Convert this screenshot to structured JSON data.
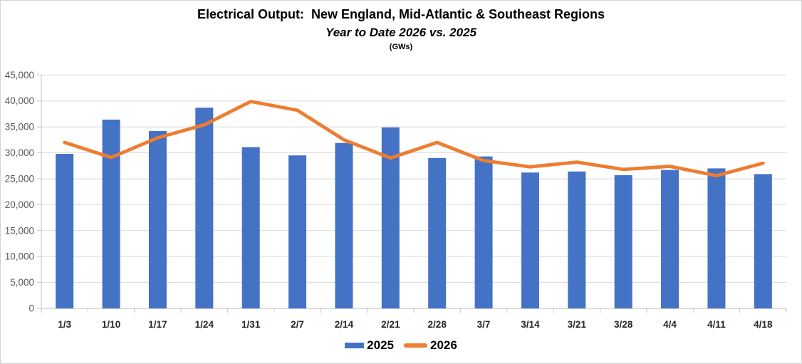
{
  "header": {
    "title": "Electrical Output:  New England, Mid-Atlantic & Southeast Regions",
    "subtitle": "Year to Date 2026 vs. 2025",
    "units_label": "(GWs)"
  },
  "legend": {
    "items": [
      {
        "label": "2025",
        "marker": "bar-swatch",
        "color": "#4472C4"
      },
      {
        "label": "2026",
        "marker": "line-swatch",
        "color": "#ED7D31"
      }
    ]
  },
  "colors": {
    "bar_2025": "#4472C4",
    "line_2026": "#ED7D31",
    "gridline": "#D9D9D9",
    "axis": "#C6C6C6",
    "y_tick_label": "#595959",
    "x_tick_label": "#262626",
    "title_text": "#000000"
  },
  "chart_data": {
    "type": "bar",
    "title": "Electrical Output:  New England, Mid-Atlantic & Southeast Regions",
    "subtitle": "Year to Date 2026 vs. 2025",
    "units": "(GWs)",
    "categories": [
      "1/3",
      "1/10",
      "1/17",
      "1/24",
      "1/31",
      "2/7",
      "2/14",
      "2/21",
      "2/28",
      "3/7",
      "3/14",
      "3/21",
      "3/28",
      "4/4",
      "4/11",
      "4/18"
    ],
    "series": [
      {
        "name": "2025",
        "type": "bar",
        "color": "#4472C4",
        "values": [
          29800,
          36400,
          34200,
          38700,
          31100,
          29500,
          31900,
          34900,
          29000,
          29300,
          26200,
          26400,
          25700,
          26700,
          27000,
          25900
        ]
      },
      {
        "name": "2026",
        "type": "line",
        "color": "#ED7D31",
        "values": [
          32000,
          29100,
          32900,
          35400,
          39900,
          38200,
          32500,
          29000,
          32000,
          28500,
          27300,
          28200,
          26800,
          27400,
          25600,
          28000
        ]
      }
    ],
    "ylim": [
      0,
      45000
    ],
    "ytick_step": 5000,
    "ytick_labels": [
      "0",
      "5,000",
      "10,000",
      "15,000",
      "20,000",
      "25,000",
      "30,000",
      "35,000",
      "40,000",
      "45,000"
    ],
    "grid": true,
    "legend_position": "bottom"
  }
}
